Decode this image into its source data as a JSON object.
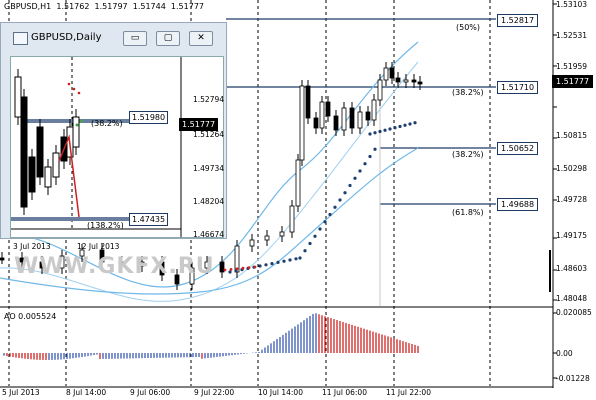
{
  "header": {
    "symbol_tf": "GBPUSD,H1",
    "o": "1.51762",
    "h": "1.51797",
    "l": "1.51744",
    "c": "1.51777"
  },
  "watermark": "WWW.GKFX.RU",
  "price_axis": [
    "1.53103",
    "1.52531",
    "1.51959",
    "1.51777",
    "1.50815",
    "1.50298",
    "1.49728",
    "1.49175",
    "1.48603",
    "1.48048"
  ],
  "current_price": "1.51777",
  "fib_levels": [
    {
      "pct": "(50%)",
      "price": "1.52817"
    },
    {
      "pct": "(38.2%)",
      "price": "1.51710"
    },
    {
      "pct": "(38.2%)",
      "price": "1.50652"
    },
    {
      "pct": "(61.8%)",
      "price": "1.49688"
    }
  ],
  "ao": {
    "label": "AO 0.005524",
    "axis": [
      "0.020085",
      "0.00",
      "-0.01228"
    ]
  },
  "time_axis": [
    "5 Jul 2013",
    "8 Jul 14:00",
    "9 Jul 06:00",
    "9 Jul 22:00",
    "10 Jul 14:00",
    "11 Jul 06:00",
    "11 Jul 22:00"
  ],
  "inset": {
    "title": "GBPUSD,Daily",
    "buttons": {
      "minimize": "▭",
      "restore": "▢",
      "close": "✕"
    },
    "price_axis": [
      "1.52794",
      "1.51264",
      "1.49734",
      "1.48204",
      "1.46674"
    ],
    "current_price": "1.51777",
    "fib_levels": [
      {
        "pct": "(38.2%)",
        "price": "1.51980"
      },
      {
        "pct": "(138.2%)",
        "price": "1.47435"
      }
    ],
    "time_axis": [
      "3 Jul 2013",
      "12 Jul 2013"
    ]
  },
  "colors": {
    "bull": "#000000",
    "bear": "#000000",
    "band": "#6fb8e8",
    "psar": "#1d3f6f",
    "ao_up": "#3a5bb0",
    "ao_down": "#cc2222",
    "fib": "#1e3a63"
  }
}
